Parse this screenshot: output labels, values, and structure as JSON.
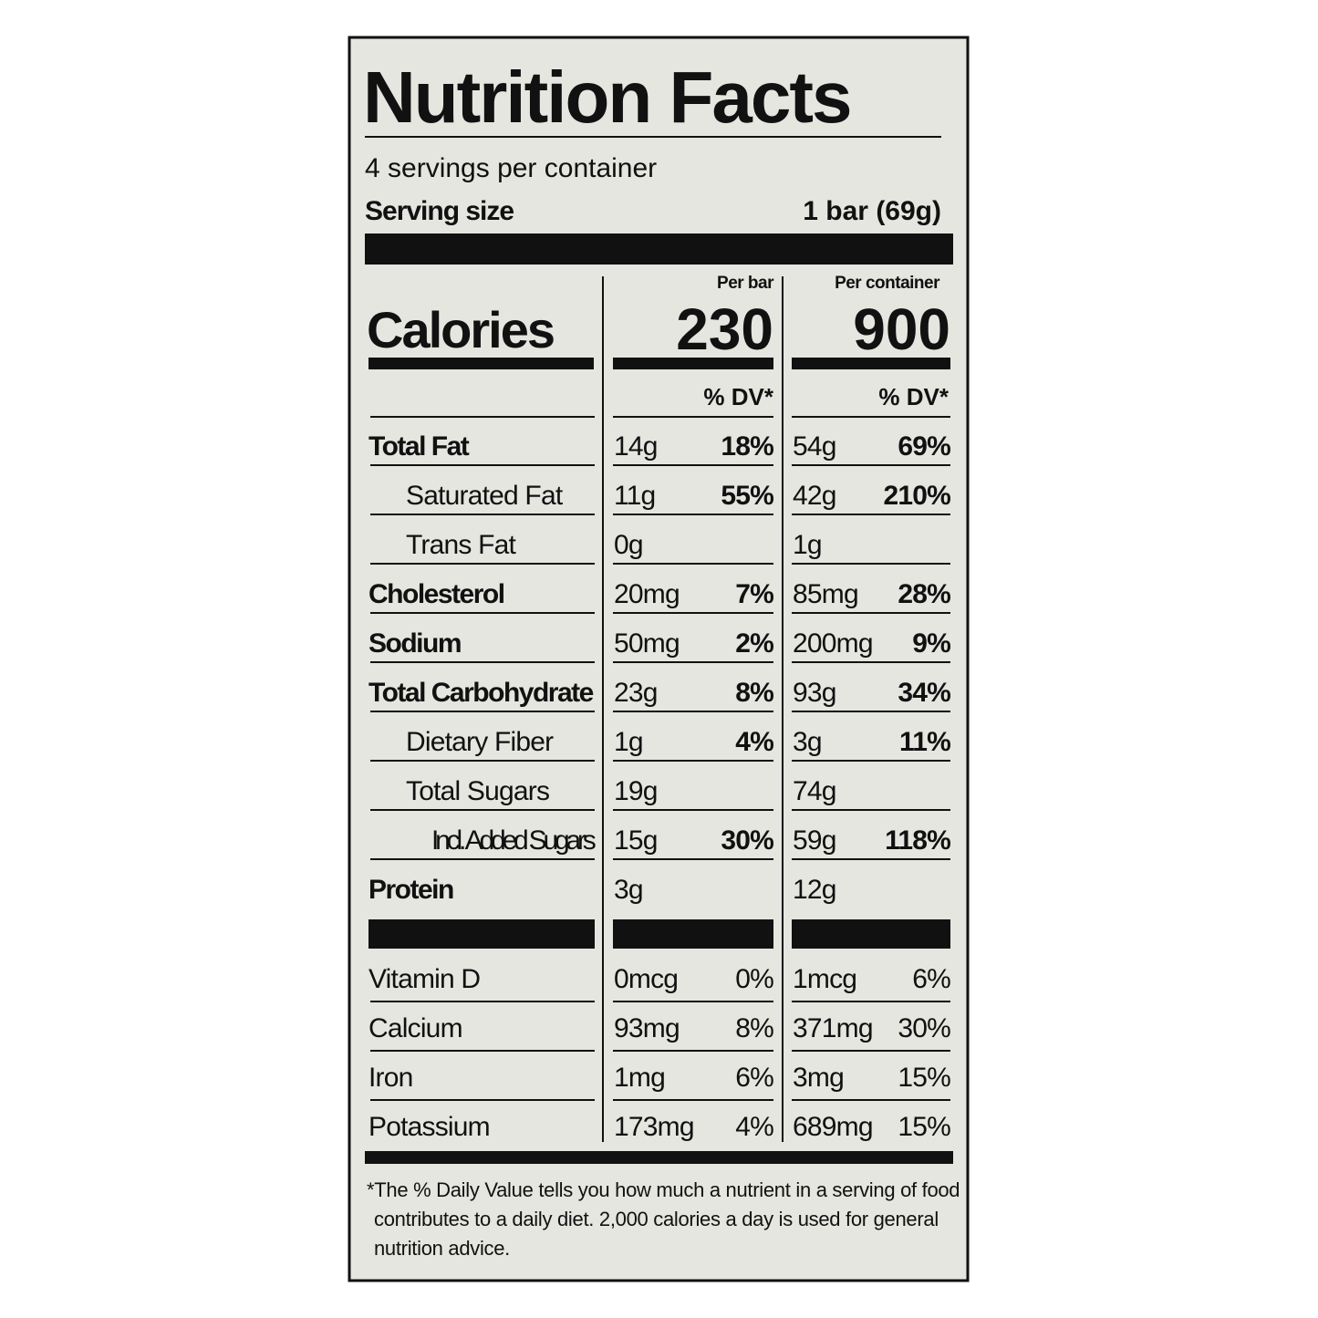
{
  "title": "Nutrition Facts",
  "servings": "4 servings per container",
  "serving_size": {
    "label": "Serving size",
    "value": "1 bar (69g)"
  },
  "columns": [
    "Per bar",
    "Per container"
  ],
  "calories": {
    "label": "Calories",
    "values": [
      230,
      900
    ]
  },
  "dv_header": [
    "% DV*",
    "% DV*"
  ],
  "nutrients": [
    {
      "name": "Total Fat",
      "bar": [
        "14g",
        "18%"
      ],
      "container": [
        "54g",
        "69%"
      ]
    },
    {
      "name": "Saturated Fat",
      "bar": [
        "11g",
        "55%"
      ],
      "container": [
        "42g",
        "210%"
      ]
    },
    {
      "name": "Trans Fat",
      "bar": [
        "0g"
      ],
      "container": [
        "1g"
      ]
    },
    {
      "name": "Cholesterol",
      "bar": [
        "20mg",
        "7%"
      ],
      "container": [
        "85mg",
        "28%"
      ]
    },
    {
      "name": "Sodium",
      "bar": [
        "50mg",
        "2%"
      ],
      "container": [
        "200mg",
        "9%"
      ]
    },
    {
      "name": "Total Carbohydrate",
      "bar": [
        "23g",
        "8%"
      ],
      "container": [
        "93g",
        "34%"
      ]
    },
    {
      "name": "Dietary Fiber",
      "bar": [
        "1g",
        "4%"
      ],
      "container": [
        "3g",
        "11%"
      ]
    },
    {
      "name": "Total Sugars",
      "bar": [
        "19g"
      ],
      "container": [
        "74g"
      ]
    },
    {
      "name": "Incl. Added Sugars",
      "bar": [
        "15g",
        "30%"
      ],
      "container": [
        "59g",
        "118%"
      ]
    },
    {
      "name": "Protein",
      "bar": [
        "3g"
      ],
      "container": [
        "12g"
      ]
    }
  ],
  "vitamins": [
    {
      "name": "Vitamin D",
      "bar": [
        "0mcg",
        "0%"
      ],
      "container": [
        "1mcg",
        "6%"
      ]
    },
    {
      "name": "Calcium",
      "bar": [
        "93mg",
        "8%"
      ],
      "container": [
        "371mg",
        "30%"
      ]
    },
    {
      "name": "Iron",
      "bar": [
        "1mg",
        "6%"
      ],
      "container": [
        "3mg",
        "15%"
      ]
    },
    {
      "name": "Potassium",
      "bar": [
        "173mg",
        "4%"
      ],
      "container": [
        "689mg",
        "15%"
      ]
    }
  ],
  "footnote": [
    "*The % Daily Value tells you how much a nutrient in a serving of food",
    "contributes to a daily diet. 2,000 calories a day is used for general",
    "nutrition advice."
  ]
}
